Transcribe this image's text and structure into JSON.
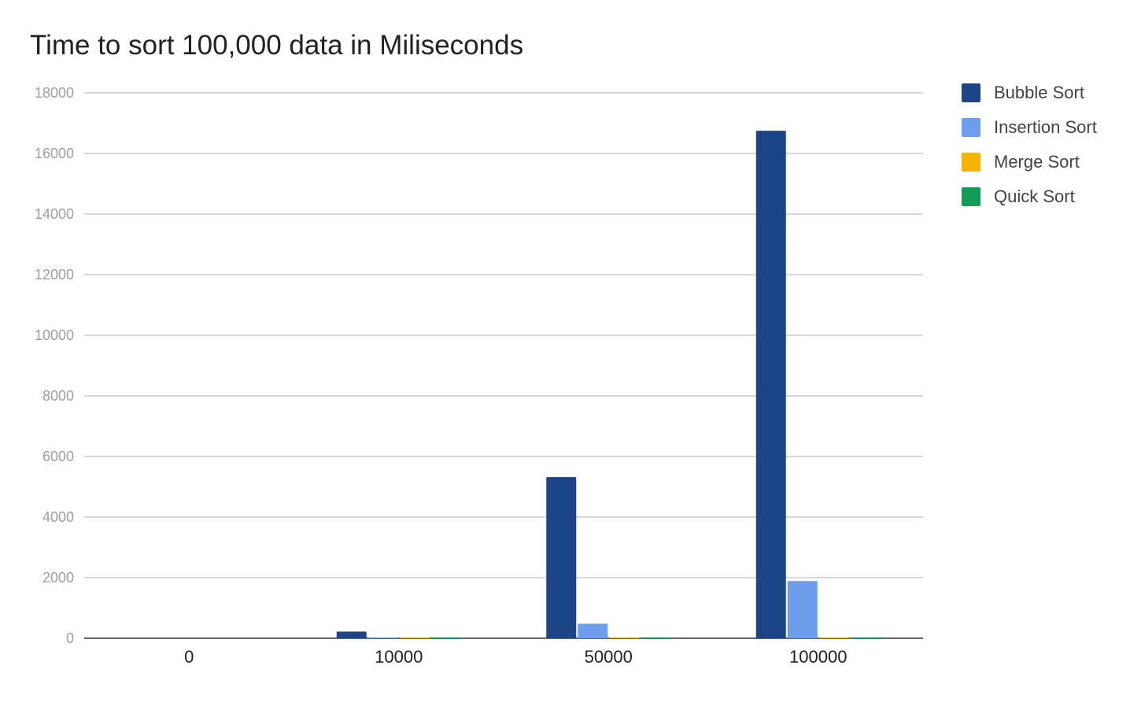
{
  "chart_data": {
    "type": "bar",
    "title": "Time to sort 100,000 data in Miliseconds",
    "xlabel": "",
    "ylabel": "",
    "categories": [
      "0",
      "10000",
      "50000",
      "100000"
    ],
    "series": [
      {
        "name": "Bubble Sort",
        "color": "#1c4587",
        "values": [
          0,
          220,
          5320,
          16750
        ]
      },
      {
        "name": "Insertion Sort",
        "color": "#6d9eeb",
        "values": [
          0,
          20,
          480,
          1890
        ]
      },
      {
        "name": "Merge Sort",
        "color": "#f4b400",
        "values": [
          0,
          2,
          10,
          20
        ]
      },
      {
        "name": "Quick Sort",
        "color": "#0f9d58",
        "values": [
          0,
          1,
          5,
          10
        ]
      }
    ],
    "ylim": [
      0,
      18000
    ],
    "yticks": [
      "0",
      "2000",
      "4000",
      "6000",
      "8000",
      "10000",
      "12000",
      "14000",
      "16000",
      "18000"
    ],
    "grid": true,
    "legend_position": "right"
  }
}
